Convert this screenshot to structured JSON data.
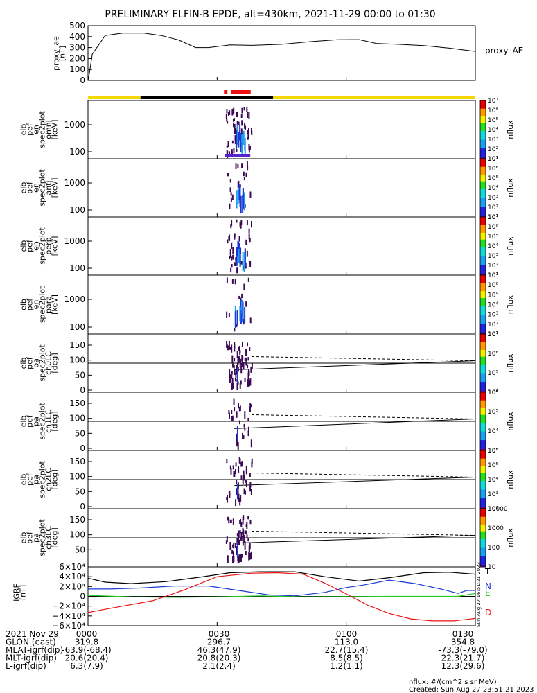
{
  "title": "PRELIMINARY ELFIN-B EPDE, alt=430km, 2021-11-29 00:00 to 01:30",
  "colors": {
    "yellow": "#f5d800",
    "black": "#000000",
    "red": "#ee1111",
    "blue": "#1a3ad6",
    "green": "#22cc22",
    "purple": "#3a0a55",
    "navy": "#17176a"
  },
  "chart_data": {
    "type": "line",
    "x_range": [
      "0000",
      "0130"
    ],
    "x_minutes": [
      0,
      90
    ],
    "ae_panel": {
      "ylabel_lines": [
        "proxy_ae",
        "[nT]"
      ],
      "yticks": [
        "0",
        "100",
        "200",
        "300",
        "400",
        "500"
      ],
      "ylim": [
        0,
        500
      ],
      "legend": "proxy_AE",
      "series": [
        {
          "t": 0,
          "v": 0
        },
        {
          "t": 0.3,
          "v": 60
        },
        {
          "t": 1,
          "v": 240
        },
        {
          "t": 4,
          "v": 410
        },
        {
          "t": 8,
          "v": 432
        },
        {
          "t": 13,
          "v": 432
        },
        {
          "t": 17,
          "v": 410
        },
        {
          "t": 21,
          "v": 370
        },
        {
          "t": 25,
          "v": 300
        },
        {
          "t": 28,
          "v": 300
        },
        {
          "t": 33,
          "v": 325
        },
        {
          "t": 38,
          "v": 320
        },
        {
          "t": 45,
          "v": 330
        },
        {
          "t": 52,
          "v": 355
        },
        {
          "t": 58,
          "v": 372
        },
        {
          "t": 63,
          "v": 373
        },
        {
          "t": 67,
          "v": 338
        },
        {
          "t": 72,
          "v": 330
        },
        {
          "t": 78,
          "v": 318
        },
        {
          "t": 84,
          "v": 295
        },
        {
          "t": 90,
          "v": 265
        }
      ]
    },
    "state_bar": {
      "yellow_ranges": [
        [
          0,
          12.2
        ],
        [
          43,
          90
        ]
      ],
      "black_range": [
        12.2,
        43
      ],
      "red_ranges": [
        [
          31.6,
          32.4
        ],
        [
          33.3,
          37.8
        ]
      ]
    },
    "spec_panels": [
      {
        "label_lines": [
          "elb",
          "pef",
          "en",
          "spec2plot",
          "omni",
          "[keV]"
        ],
        "yticks": [
          "100",
          "1000"
        ],
        "cbar_ticks": [
          "10¹",
          "10²",
          "10³",
          "10⁴",
          "10⁵",
          "10⁶",
          "10⁷"
        ],
        "cbar_label": "nflux"
      },
      {
        "label_lines": [
          "elb",
          "pef",
          "en",
          "spec2plot",
          "anti",
          "[keV]"
        ],
        "yticks": [
          "100",
          "1000"
        ],
        "cbar_ticks": [
          "10¹",
          "10²",
          "10³",
          "10⁴",
          "10⁵",
          "10⁶",
          "10⁷"
        ],
        "cbar_label": "nflux"
      },
      {
        "label_lines": [
          "elb",
          "pef",
          "en",
          "spec2plot",
          "perp",
          "[keV]"
        ],
        "yticks": [
          "100",
          "1000"
        ],
        "cbar_ticks": [
          "10¹",
          "10²",
          "10³",
          "10⁴",
          "10⁵",
          "10⁶",
          "10⁷"
        ],
        "cbar_label": "nflux"
      },
      {
        "label_lines": [
          "elb",
          "pef",
          "en",
          "spec2plot",
          "para",
          "[keV]"
        ],
        "yticks": [
          "100",
          "1000"
        ],
        "cbar_ticks": [
          "10¹",
          "10²",
          "10³",
          "10⁴",
          "10⁵",
          "10⁶",
          "10⁷"
        ],
        "cbar_label": "nflux"
      }
    ],
    "pa_panels": [
      {
        "label_lines": [
          "elb",
          "pef",
          "pa",
          "spec2plot",
          "ch0LC",
          "[deg]"
        ],
        "yticks": [
          "0",
          "50",
          "100",
          "150"
        ],
        "cbar_ticks": [
          "10⁴",
          "10⁵",
          "10⁶",
          "10⁷"
        ],
        "cbar_label": "nflux"
      },
      {
        "label_lines": [
          "elb",
          "pef",
          "pa",
          "spec2plot",
          "ch1LC",
          "[deg]"
        ],
        "yticks": [
          "0",
          "50",
          "100",
          "150"
        ],
        "cbar_ticks": [
          "10³",
          "10⁴",
          "10⁵",
          "10⁶"
        ],
        "cbar_label": "nflux"
      },
      {
        "label_lines": [
          "elb",
          "pef",
          "pa",
          "spec2plot",
          "ch2LC",
          "[deg]"
        ],
        "yticks": [
          "0",
          "50",
          "100",
          "150"
        ],
        "cbar_ticks": [
          "10²",
          "10³",
          "10⁴",
          "10⁵",
          "10⁶"
        ],
        "cbar_label": "nflux"
      },
      {
        "label_lines": [
          "elb",
          "pef",
          "pa",
          "spec2plot",
          "ch3LC",
          "[deg]"
        ],
        "yticks": [
          "50",
          "100",
          "150"
        ],
        "cbar_ticks": [
          "10",
          "100",
          "1000",
          "10000"
        ],
        "cbar_label": "nflux"
      }
    ],
    "igrf_panel": {
      "ylabel_lines": [
        "IGRF",
        "[nT]"
      ],
      "yticks": [
        "−6×10⁴",
        "−4×10⁴",
        "−2×10⁴",
        "0",
        "2×10⁴",
        "4×10⁴",
        "6×10⁴"
      ],
      "ylim": [
        -60000,
        60000
      ],
      "legend": [
        "T",
        "N",
        "E",
        "D"
      ],
      "side_note": "Sun Aug 27 16:51:21 2023",
      "series": [
        {
          "name": "T",
          "t": [
            0,
            4,
            10,
            18,
            26,
            33,
            40,
            48,
            55,
            63,
            70,
            78,
            84,
            90
          ],
          "v": [
            37000,
            29000,
            26000,
            30000,
            39000,
            48000,
            50000,
            50000,
            40000,
            31000,
            38000,
            48000,
            49000,
            45000
          ]
        },
        {
          "name": "N",
          "t": [
            0,
            5,
            12,
            20,
            28,
            35,
            42,
            48,
            55,
            60,
            64,
            70,
            76,
            82,
            86,
            88,
            90
          ],
          "v": [
            15000,
            15000,
            17000,
            21000,
            21000,
            12000,
            3000,
            1000,
            8000,
            18000,
            23000,
            33000,
            26000,
            15000,
            6000,
            12000,
            12000
          ]
        },
        {
          "name": "E",
          "t": [
            0,
            10,
            20,
            30,
            40,
            50,
            60,
            70,
            80,
            86,
            88,
            90
          ],
          "v": [
            2000,
            -1000,
            -2000,
            -1000,
            1000,
            -1000,
            -500,
            0,
            0,
            0,
            3000,
            6000
          ]
        },
        {
          "name": "D",
          "t": [
            0,
            3,
            8,
            15,
            22,
            30,
            38,
            44,
            50,
            55,
            60,
            65,
            70,
            75,
            80,
            85,
            88,
            90
          ],
          "v": [
            -33000,
            -28000,
            -20000,
            -9000,
            12000,
            40000,
            47000,
            48000,
            45000,
            27000,
            5000,
            -18000,
            -35000,
            -46000,
            -50000,
            -50000,
            -47000,
            -45000
          ]
        }
      ]
    },
    "cbar_ticks_right": [
      "10",
      "100",
      "1000",
      "10000"
    ],
    "xticks": [
      "0000",
      "0030",
      "0100",
      "0130"
    ]
  },
  "footer": {
    "rows": [
      {
        "label": "2021 Nov 29",
        "vals": [
          "0000",
          "0030",
          "0100",
          "0130"
        ]
      },
      {
        "label": "GLON (east)",
        "vals": [
          "319.8",
          "296.7",
          "113.0",
          "354.8"
        ]
      },
      {
        "label": "MLAT-igrf(dip)",
        "vals": [
          "-63.9(-68.4)",
          "46.3(47.9)",
          "22.7(15.4)",
          "-73.3(-79.0)"
        ]
      },
      {
        "label": "MLT-igrf(dip)",
        "vals": [
          "20.6(20.4)",
          "20.8(20.3)",
          "8.5(8.5)",
          "22.3(21.7)"
        ]
      },
      {
        "label": "L-igrf(dip)",
        "vals": [
          "6.3(7.9)",
          "2.1(2.4)",
          "1.2(1.1)",
          "12.3(29.6)"
        ]
      }
    ],
    "nflux_units": "nflux: #/(cm^2 s sr MeV)",
    "created": "Created: Sun Aug 27 23:51:21 2023"
  }
}
